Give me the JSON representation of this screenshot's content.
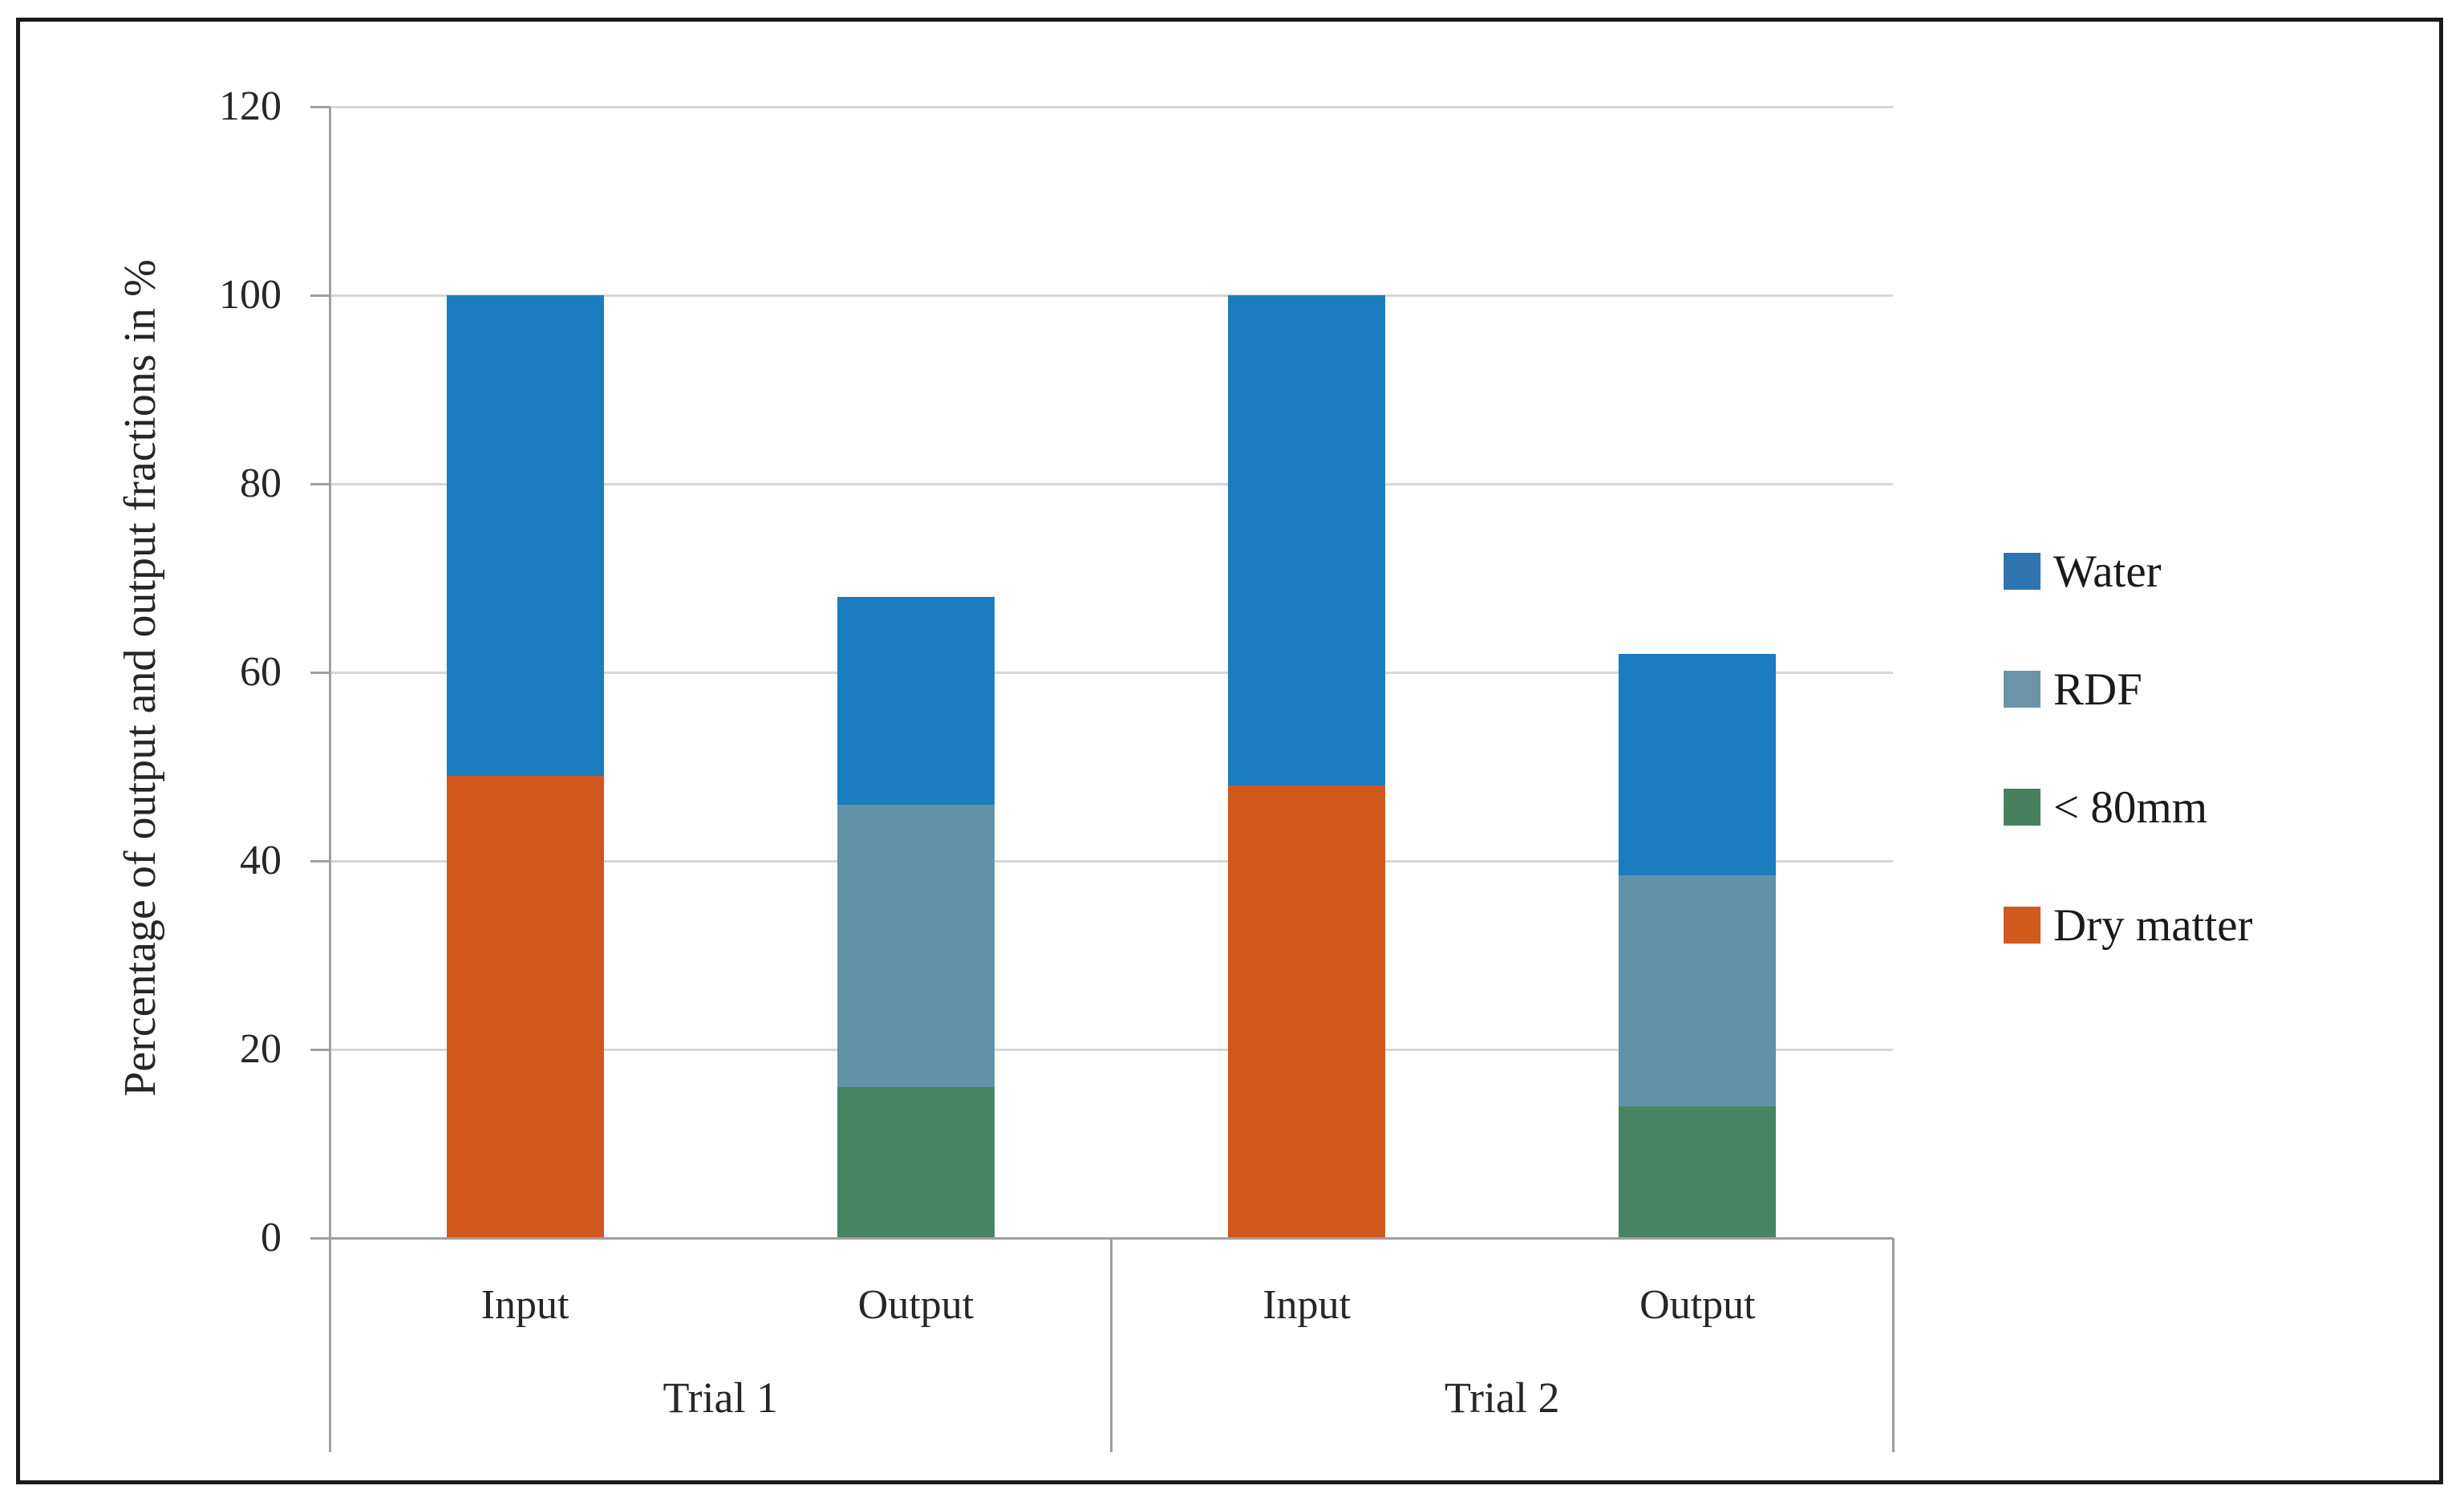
{
  "figure": {
    "background": "#ffffff",
    "border_color": "#1b1b1b"
  },
  "style": {
    "grid_color": "#d6d6d6",
    "axis_color": "#9f9f9f",
    "text_color": "#262626"
  },
  "chart_data": {
    "type": "bar",
    "stacked": true,
    "title": "",
    "xlabel": "",
    "ylabel": "Percentage of output and output fractions in %",
    "ylim": [
      0,
      120
    ],
    "yticks": [
      0,
      20,
      40,
      60,
      80,
      100,
      120
    ],
    "grid": true,
    "groups": [
      {
        "label": "Trial 1",
        "categories_span": [
          0,
          1
        ]
      },
      {
        "label": "Trial 2",
        "categories_span": [
          2,
          3
        ]
      }
    ],
    "categories": [
      "Input",
      "Output",
      "Input",
      "Output"
    ],
    "series": [
      {
        "name": "Dry matter",
        "color": "#d0581c",
        "values": [
          49,
          0,
          48,
          0
        ]
      },
      {
        "name": "< 80mm",
        "color": "#478463",
        "values": [
          0,
          16,
          0,
          14
        ]
      },
      {
        "name": "RDF",
        "color": "#6093a8",
        "values": [
          0,
          30,
          0,
          24.5
        ]
      },
      {
        "name": "Water",
        "color": "#1b7cbf",
        "values": [
          51,
          22,
          52,
          23.5
        ]
      }
    ],
    "bar_totals": [
      100,
      68,
      100,
      62
    ],
    "legend_position": "right",
    "legend": [
      {
        "label": "Water",
        "color": "#2e74b0"
      },
      {
        "label": "RDF",
        "color": "#6c94a8"
      },
      {
        "label": "< 80mm",
        "color": "#47805f"
      },
      {
        "label": "Dry matter",
        "color": "#d15a1d"
      }
    ]
  }
}
